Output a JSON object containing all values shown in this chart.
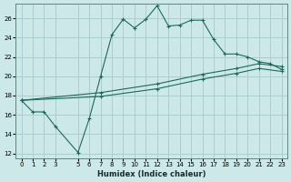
{
  "xlabel": "Humidex (Indice chaleur)",
  "bg_color": "#cce8e8",
  "grid_color": "#aacece",
  "line_color": "#1a6b5a",
  "xlim": [
    -0.5,
    23.5
  ],
  "ylim": [
    11.5,
    27.5
  ],
  "xticks": [
    0,
    1,
    2,
    3,
    5,
    6,
    7,
    8,
    9,
    10,
    11,
    12,
    13,
    14,
    15,
    16,
    17,
    18,
    19,
    20,
    21,
    22,
    23
  ],
  "yticks": [
    12,
    14,
    16,
    18,
    20,
    22,
    24,
    26
  ],
  "line1_x": [
    0,
    1,
    2,
    3,
    5,
    6,
    7,
    8,
    9,
    10,
    11,
    12,
    13,
    14,
    15,
    16,
    17,
    18,
    19,
    20,
    21,
    22,
    23
  ],
  "line1_y": [
    17.5,
    16.3,
    16.3,
    14.8,
    12.1,
    15.6,
    20.0,
    24.3,
    25.9,
    25.0,
    25.9,
    27.3,
    25.2,
    25.3,
    25.8,
    25.8,
    23.8,
    22.3,
    22.3,
    22.0,
    21.5,
    21.3,
    20.7
  ],
  "line2_x": [
    0,
    23
  ],
  "line2_y": [
    17.5,
    21.0
  ],
  "line3_x": [
    0,
    23
  ],
  "line3_y": [
    17.5,
    20.5
  ],
  "line2_mx": [
    0,
    7,
    12,
    16,
    19,
    21,
    23
  ],
  "line2_my": [
    17.5,
    18.3,
    19.2,
    20.2,
    20.8,
    21.3,
    21.0
  ],
  "line3_mx": [
    0,
    7,
    12,
    16,
    19,
    21,
    23
  ],
  "line3_my": [
    17.5,
    17.9,
    18.7,
    19.7,
    20.3,
    20.8,
    20.5
  ]
}
